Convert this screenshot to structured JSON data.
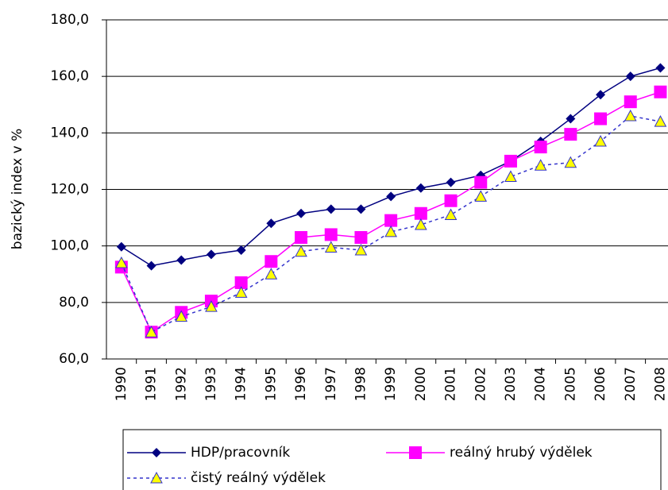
{
  "chart_data": {
    "type": "line",
    "y_label": "bazický index  v %",
    "categories": [
      "1990",
      "1991",
      "1992",
      "1993",
      "1994",
      "1995",
      "1996",
      "1997",
      "1998",
      "1999",
      "2000",
      "2001",
      "2002",
      "2003",
      "2004",
      "2005",
      "2006",
      "2007",
      "2008"
    ],
    "series": [
      {
        "name": "HDP/pracovník",
        "color": "#000080",
        "marker": "diamond",
        "dash": false,
        "values": [
          99.7,
          93,
          95,
          97,
          98.5,
          108,
          111.5,
          113,
          113,
          117.5,
          120.5,
          122.5,
          125,
          130,
          137,
          145,
          153.5,
          160,
          163
        ]
      },
      {
        "name": "reálný hrubý výdělek",
        "color": "#ff00ff",
        "marker": "square",
        "dash": false,
        "values": [
          92.5,
          69.5,
          76.5,
          80.5,
          87,
          94.5,
          103,
          104,
          103,
          109,
          111.5,
          116,
          122.5,
          130,
          135,
          139.5,
          145,
          151,
          154.5
        ]
      },
      {
        "name": "čistý reálný výdělek",
        "color": "#3333cc",
        "marker": "triangle",
        "marker_fill": "#ffff00",
        "dash": true,
        "values": [
          94,
          69.5,
          75,
          78.5,
          83.5,
          90,
          98,
          99.5,
          98.5,
          105,
          107.5,
          111,
          117.5,
          124.5,
          128.5,
          129.5,
          137,
          146,
          144
        ]
      }
    ],
    "ylim": [
      60,
      180
    ],
    "yticks": [
      {
        "value": 60,
        "label": "60,0"
      },
      {
        "value": 80,
        "label": "80,0"
      },
      {
        "value": 100,
        "label": "100,0"
      },
      {
        "value": 120,
        "label": "120,0"
      },
      {
        "value": 140,
        "label": "140,0"
      },
      {
        "value": 160,
        "label": "160,0"
      },
      {
        "value": 180,
        "label": "180,0"
      }
    ],
    "grid": true,
    "legend": "bottom"
  }
}
